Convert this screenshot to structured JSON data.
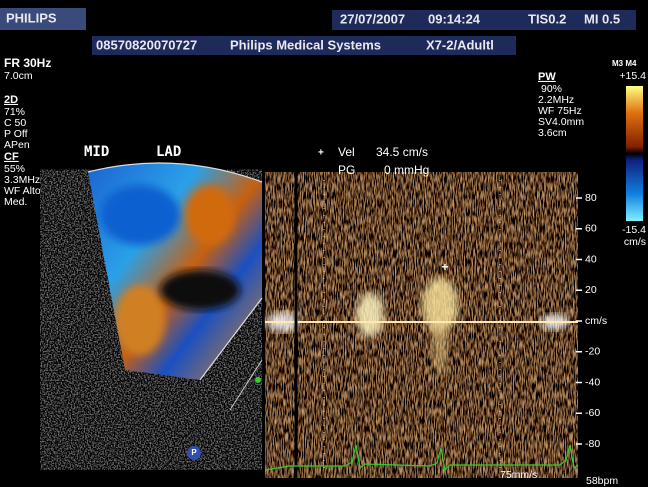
{
  "header": {
    "brand": "PHILIPS",
    "date": "27/07/2007",
    "time": "09:14:24",
    "tis": "TIS0.2",
    "mi": "MI 0.5",
    "patient_id": "08570820070727",
    "institution": "Philips Medical Systems",
    "probe": "X7-2/Adultl"
  },
  "left_params": {
    "frame_rate": "FR 30Hz",
    "depth": "7.0cm",
    "mode_2d": "2D",
    "gain_2d": "71%",
    "compression": "C 50",
    "persistence": "P Off",
    "preset": "APen",
    "mode_cf": "CF",
    "gain_cf": "55%",
    "freq_cf": "3.3MHz",
    "wall_filter_cf": "WF Alto",
    "setting_cf": "Med."
  },
  "view_labels": {
    "left": "MID",
    "right": "LAD"
  },
  "pw_params": {
    "mode": "PW",
    "gain": "90%",
    "freq": "2.2MHz",
    "wall_filter": "WF  75Hz",
    "sample_volume": "SV4.0mm",
    "depth": "3.6cm"
  },
  "colorbar": {
    "map": "M3 M4",
    "max": "+15.4",
    "min": "-15.4",
    "unit": "cm/s"
  },
  "measurement": {
    "vel_label": "Vel",
    "vel_value": "34.5 cm/s",
    "pg_label": "PG",
    "pg_value": "0 mmHg"
  },
  "velocity_scale": [
    "80",
    "60",
    "40",
    "20",
    "cm/s",
    "-20",
    "-40",
    "-60",
    "-80"
  ],
  "footer": {
    "sweep": "75mm/s",
    "heart_rate": "58bpm",
    "icon": "P"
  }
}
